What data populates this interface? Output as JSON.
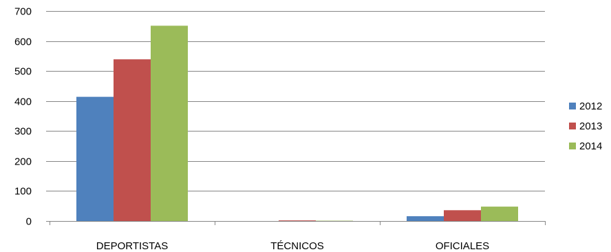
{
  "chart_data": {
    "type": "bar",
    "title": "",
    "xlabel": "",
    "ylabel": "",
    "categories": [
      "DEPORTISTAS",
      "TÉCNICOS",
      "OFICIALES"
    ],
    "series": [
      {
        "name": "2012",
        "color": "#4F81BD",
        "values": [
          414,
          0,
          16
        ]
      },
      {
        "name": "2013",
        "color": "#C0504D",
        "values": [
          539,
          2,
          36
        ]
      },
      {
        "name": "2014",
        "color": "#9BBB59",
        "values": [
          651,
          1,
          48
        ]
      }
    ],
    "ylim": [
      0,
      700
    ],
    "yticks": [
      0,
      100,
      200,
      300,
      400,
      500,
      600,
      700
    ],
    "grid": true,
    "legend": "right"
  }
}
